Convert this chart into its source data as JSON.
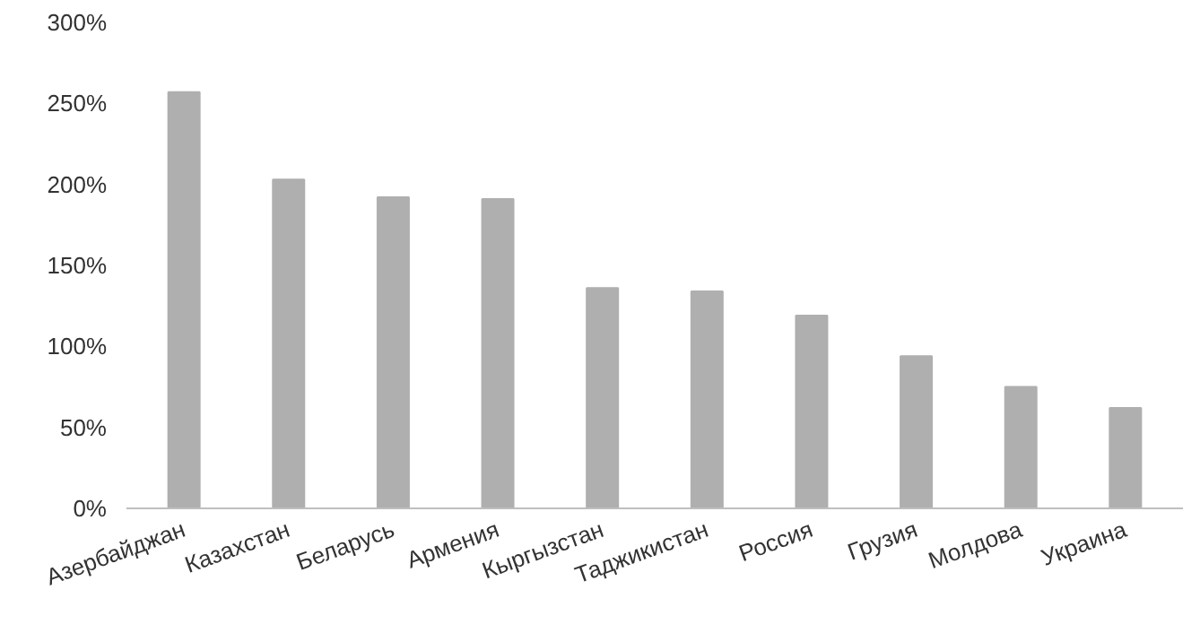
{
  "chart_data": {
    "type": "bar",
    "categories": [
      "Азербайджан",
      "Казахстан",
      "Беларусь",
      "Армения",
      "Кыргызстан",
      "Таджикистан",
      "Россия",
      "Грузия",
      "Молдова",
      "Украина"
    ],
    "values": [
      257,
      203,
      192,
      191,
      136,
      134,
      119,
      94,
      75,
      62
    ],
    "color": "#afafaf",
    "ylim": [
      0,
      300
    ],
    "yticks": [
      {
        "value": 0,
        "label": "0%"
      },
      {
        "value": 50,
        "label": "50%"
      },
      {
        "value": 100,
        "label": "100%"
      },
      {
        "value": 150,
        "label": "150%"
      },
      {
        "value": 200,
        "label": "200%"
      },
      {
        "value": 250,
        "label": "250%"
      },
      {
        "value": 300,
        "label": "300%"
      }
    ],
    "grid": false
  }
}
